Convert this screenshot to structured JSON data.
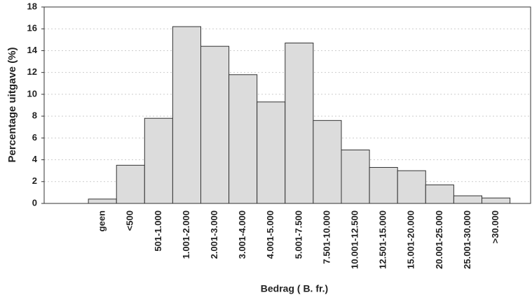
{
  "chart_data": {
    "type": "bar",
    "x_label": "Bedrag ( B. fr.)",
    "y_label": "Percentage uitgave (%)",
    "categories": [
      null,
      "geen",
      "<500",
      "501-1.000",
      "1.001-2.000",
      "2.001-3.000",
      "3.001-4.000",
      "4.001-5.000",
      "5.001-7.500",
      "7.501-10.000",
      "10.001-12.500",
      "12.501-15.000",
      "15.001-20.000",
      "20.001-25.000",
      "25.001-30.000",
      ">30.000"
    ],
    "values": [
      0,
      0.4,
      3.5,
      7.8,
      16.2,
      14.4,
      11.8,
      9.3,
      14.7,
      7.6,
      4.9,
      3.3,
      3.0,
      1.7,
      0.7,
      0.5
    ],
    "color": "#dcdcdc",
    "ylim": [
      0,
      18
    ],
    "yticks": [
      0,
      2,
      4,
      6,
      8,
      10,
      12,
      14,
      16,
      18
    ],
    "grid": true
  }
}
